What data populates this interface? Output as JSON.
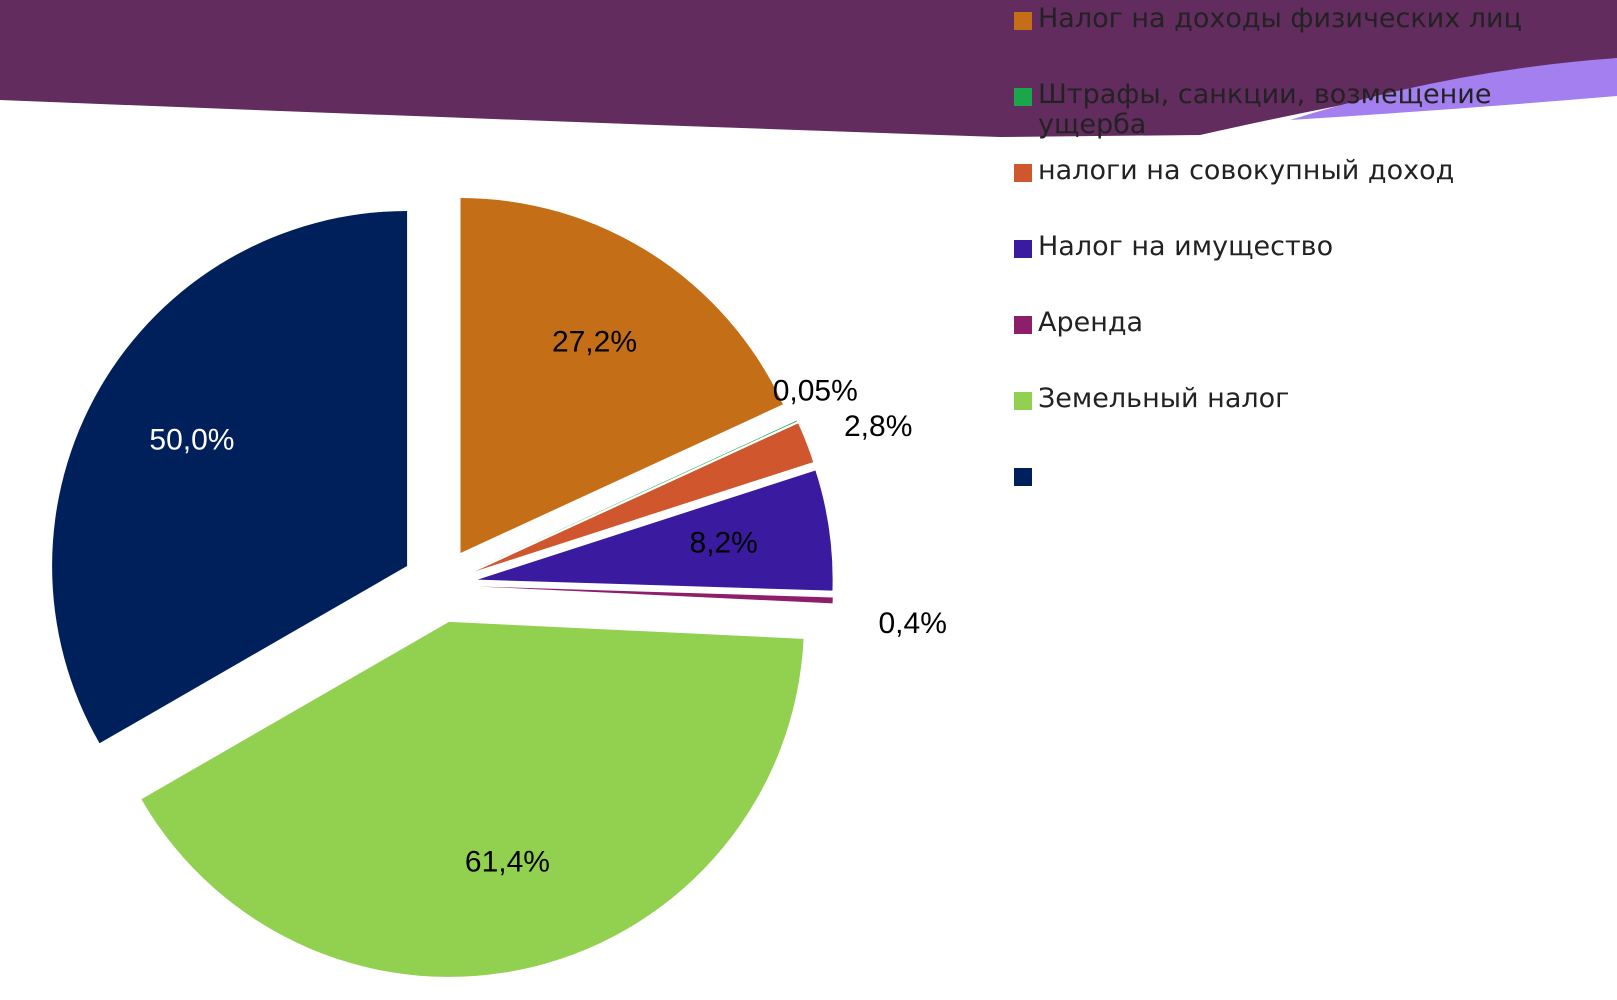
{
  "chart_data": {
    "type": "pie",
    "categories": [
      "Налог на доходы физических лиц",
      "Штрафы, санкции, возмещение ущерба",
      "налоги на совокупный доход",
      "Налог на имущество",
      "Аренда",
      "Земельный налог",
      null
    ],
    "values": [
      27.2,
      0.05,
      2.8,
      8.2,
      0.4,
      61.4,
      50.0
    ],
    "value_labels": [
      "27,2%",
      "0,05%",
      "2,8%",
      "8,2%",
      "0,4%",
      "61,4%",
      "50,0%"
    ],
    "colors": [
      "#c46f17",
      "#1aa64a",
      "#d0562e",
      "#3a1a9e",
      "#8e1e6a",
      "#92d050",
      "#00205c"
    ],
    "legend": "right"
  }
}
